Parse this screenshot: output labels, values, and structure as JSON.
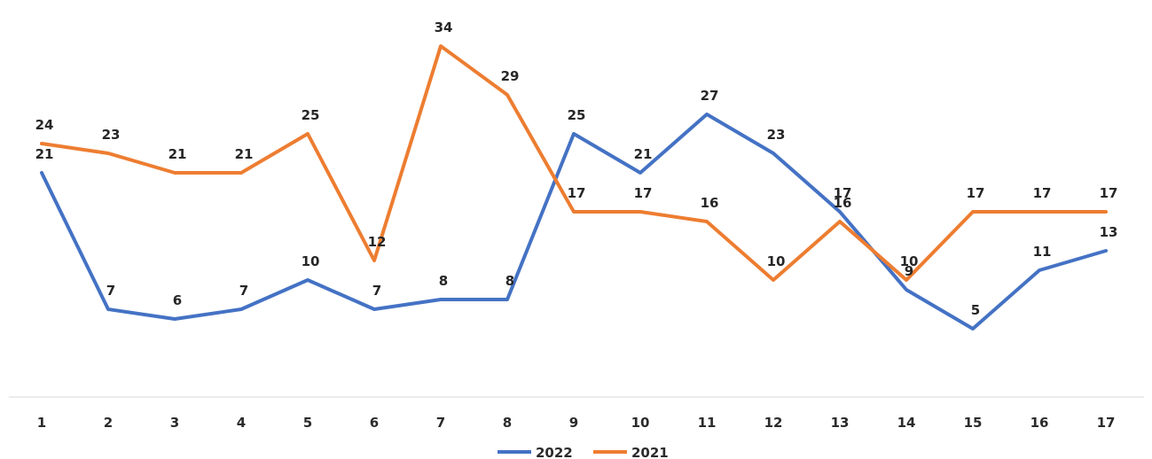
{
  "chart_data": {
    "type": "line",
    "categories": [
      "1",
      "2",
      "3",
      "4",
      "5",
      "6",
      "7",
      "8",
      "9",
      "10",
      "11",
      "12",
      "13",
      "14",
      "15",
      "16",
      "17"
    ],
    "series": [
      {
        "name": "2022",
        "color": "#4472c4",
        "values": [
          21,
          7,
          6,
          7,
          10,
          7,
          8,
          8,
          25,
          21,
          27,
          23,
          17,
          9,
          5,
          11,
          13
        ]
      },
      {
        "name": "2021",
        "color": "#ed7d31",
        "values": [
          24,
          23,
          21,
          21,
          25,
          12,
          34,
          29,
          17,
          17,
          16,
          10,
          16,
          10,
          17,
          17,
          17
        ]
      }
    ],
    "ylim": [
      -2,
      38
    ],
    "grid": false,
    "data_labels": true,
    "legend_position": "bottom",
    "legend": [
      "2022",
      "2021"
    ]
  }
}
